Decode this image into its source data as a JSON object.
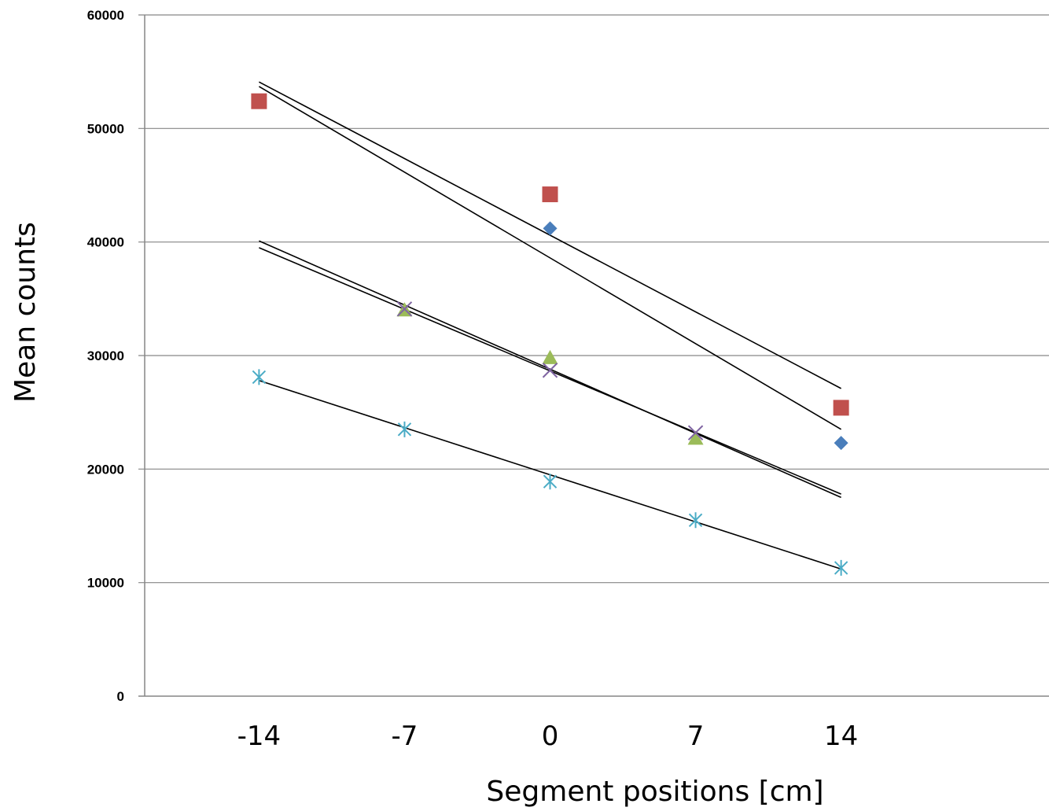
{
  "chart_data": {
    "type": "scatter",
    "xlabel": "Segment positions [cm]",
    "ylabel": "Mean counts",
    "xticks": [
      "-14",
      "-7",
      "0",
      "7",
      "14"
    ],
    "yticks": [
      "0",
      "10000",
      "20000",
      "30000",
      "40000",
      "50000",
      "60000"
    ],
    "ylim": [
      0,
      60000
    ],
    "grid": "horizontal",
    "legend": "none",
    "series": [
      {
        "marker": "diamond",
        "color": "#4a7ebb",
        "x": [
          0,
          14
        ],
        "y": [
          41200,
          22300
        ]
      },
      {
        "marker": "square",
        "color": "#c0504d",
        "x": [
          -14,
          0,
          14
        ],
        "y": [
          52400,
          44200,
          25400
        ]
      },
      {
        "marker": "triangle",
        "color": "#9bbb59",
        "x": [
          -7,
          0,
          7
        ],
        "y": [
          34000,
          29800,
          22700
        ]
      },
      {
        "marker": "x",
        "color": "#7f64a2",
        "x": [
          -7,
          0,
          7
        ],
        "y": [
          34100,
          28700,
          23200
        ]
      },
      {
        "marker": "star",
        "color": "#4bacc6",
        "x": [
          -14,
          -7,
          0,
          7,
          14
        ],
        "y": [
          28100,
          23500,
          18900,
          15500,
          11300
        ]
      }
    ],
    "trendlines": [
      {
        "x": [
          -14,
          14
        ],
        "y": [
          54100,
          27100
        ]
      },
      {
        "x": [
          -14,
          14
        ],
        "y": [
          53700,
          23500
        ]
      },
      {
        "x": [
          -14,
          14
        ],
        "y": [
          40100,
          17500
        ]
      },
      {
        "x": [
          -14,
          14
        ],
        "y": [
          39500,
          17800
        ]
      },
      {
        "x": [
          -14,
          14
        ],
        "y": [
          27800,
          11200
        ]
      }
    ]
  }
}
